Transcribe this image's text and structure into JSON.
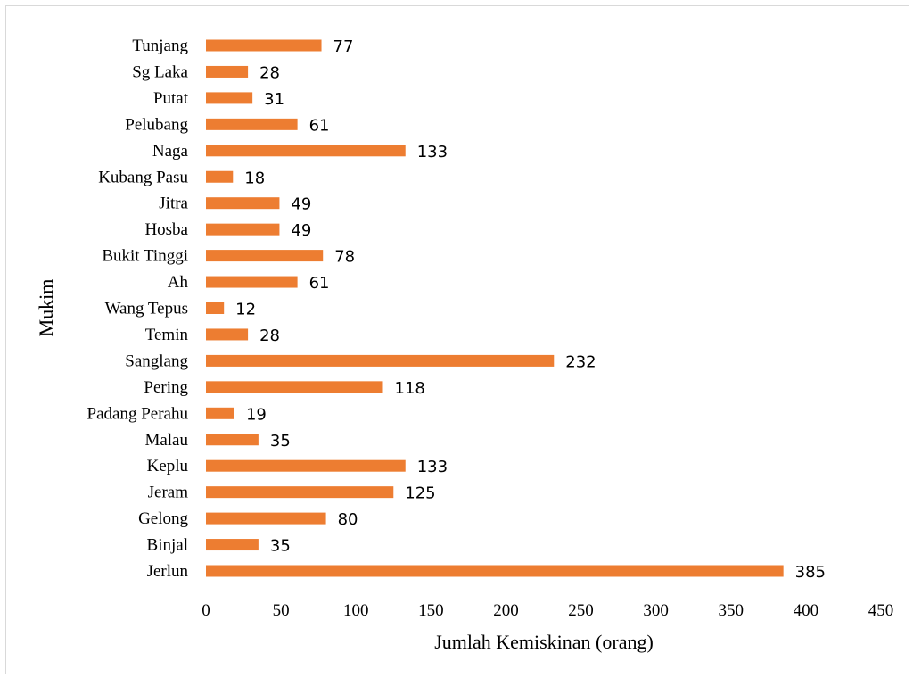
{
  "chart_data": {
    "type": "bar",
    "orientation": "horizontal",
    "categories": [
      "Tunjang",
      "Sg Laka",
      "Putat",
      "Pelubang",
      "Naga",
      "Kubang Pasu",
      "Jitra",
      "Hosba",
      "Bukit Tinggi",
      "Ah",
      "Wang Tepus",
      "Temin",
      "Sanglang",
      "Pering",
      "Padang Perahu",
      "Malau",
      "Keplu",
      "Jeram",
      "Gelong",
      "Binjal",
      "Jerlun"
    ],
    "values": [
      77,
      28,
      31,
      61,
      133,
      18,
      49,
      49,
      78,
      61,
      12,
      28,
      232,
      118,
      19,
      35,
      133,
      125,
      80,
      35,
      385
    ],
    "data_labels": [
      "77",
      "28",
      "31",
      "61",
      "133",
      "18",
      "49",
      "49",
      "78",
      "61",
      "12",
      "28",
      "232",
      "118",
      "19",
      "35",
      "133",
      "125",
      "80",
      "35",
      "385"
    ],
    "xlabel": "Jumlah Kemiskinan (orang)",
    "ylabel": "Mukim",
    "xlim": [
      0,
      450
    ],
    "xticks": [
      "0",
      "50",
      "100",
      "150",
      "200",
      "250",
      "300",
      "350",
      "400",
      "450"
    ],
    "grid": false,
    "legend": "none",
    "bar_color": "#ed7d31"
  }
}
